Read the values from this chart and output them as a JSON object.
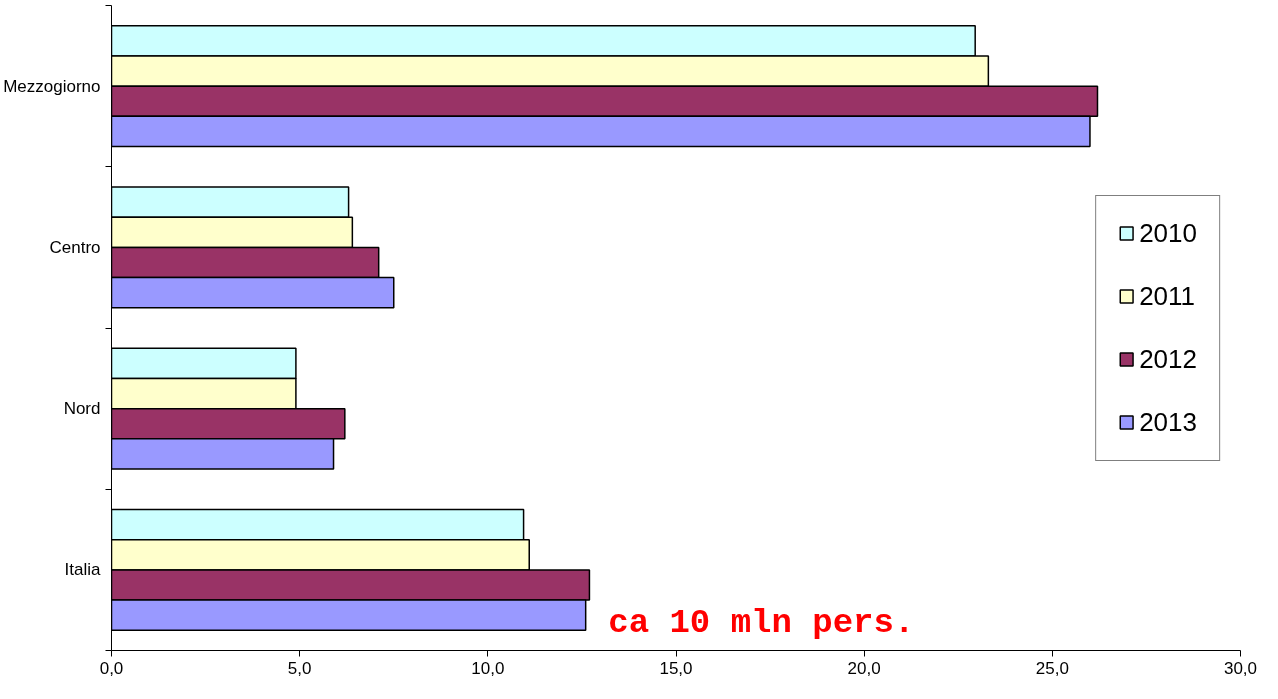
{
  "chart_data": {
    "type": "bar",
    "orientation": "horizontal",
    "categories": [
      "Mezzogiorno",
      "Centro",
      "Nord",
      "Italia"
    ],
    "series": [
      {
        "name": "2010",
        "color": "#ccffff",
        "values": [
          22.95,
          6.3,
          4.9,
          10.95
        ]
      },
      {
        "name": "2011",
        "color": "#ffffcc",
        "values": [
          23.3,
          6.4,
          4.9,
          11.1
        ]
      },
      {
        "name": "2012",
        "color": "#993366",
        "values": [
          26.2,
          7.1,
          6.2,
          12.7
        ]
      },
      {
        "name": "2013",
        "color": "#9999ff",
        "values": [
          26.0,
          7.5,
          5.9,
          12.6
        ]
      }
    ],
    "xlim": [
      0,
      30
    ],
    "xticks": [
      {
        "value": 0,
        "label": "0,0"
      },
      {
        "value": 5,
        "label": "5,0"
      },
      {
        "value": 10,
        "label": "10,0"
      },
      {
        "value": 15,
        "label": "15,0"
      },
      {
        "value": 20,
        "label": "20,0"
      },
      {
        "value": 25,
        "label": "25,0"
      },
      {
        "value": 30,
        "label": "30,0"
      }
    ],
    "annotations": [
      "ca 10 mln pers."
    ],
    "legend": "right",
    "grid": false
  }
}
